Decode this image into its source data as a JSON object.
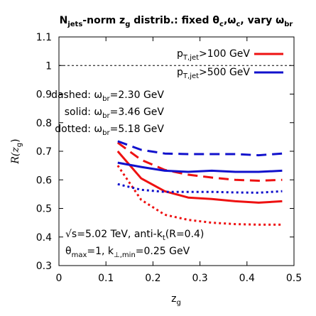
{
  "chart_data": {
    "type": "line",
    "title": {
      "parts": [
        {
          "t": "N",
          "style": "normal"
        },
        {
          "t": "jets",
          "style": "sub"
        },
        {
          "t": "-norm z",
          "style": "normal"
        },
        {
          "t": "g",
          "style": "sub"
        },
        {
          "t": " distrib.: fixed θ",
          "style": "normal"
        },
        {
          "t": "c",
          "style": "sub"
        },
        {
          "t": ",ω",
          "style": "normal"
        },
        {
          "t": "c",
          "style": "sub"
        },
        {
          "t": ", vary ω",
          "style": "normal"
        },
        {
          "t": "br",
          "style": "sub"
        }
      ]
    },
    "xlabel": {
      "main": "z",
      "sub": "g"
    },
    "ylabel": {
      "main": "R(z",
      "sub": "g",
      "end": ")"
    },
    "xlim": [
      0,
      0.5
    ],
    "ylim": [
      0.3,
      1.1
    ],
    "xticks": [
      0,
      0.1,
      0.2,
      0.3,
      0.4,
      0.5
    ],
    "xtick_labels": [
      "0",
      "0.1",
      "0.2",
      "0.3",
      "0.4",
      "0.5"
    ],
    "yticks": [
      0.3,
      0.4,
      0.5,
      0.6,
      0.7,
      0.8,
      0.9,
      1.0,
      1.1
    ],
    "ytick_labels": [
      "0.3",
      "0.4",
      "0.5",
      "0.6",
      "0.7",
      "0.8",
      "0.9",
      "1",
      "1.1"
    ],
    "reference_line": {
      "y": 1.0,
      "color": "#000000",
      "style": "dashed"
    },
    "x": [
      0.125,
      0.175,
      0.225,
      0.275,
      0.325,
      0.375,
      0.425,
      0.475
    ],
    "series": [
      {
        "legend": "pt100",
        "color": "#ee1111",
        "style": "solid",
        "values": [
          0.7,
          0.605,
          0.56,
          0.538,
          0.533,
          0.525,
          0.52,
          0.525
        ]
      },
      {
        "legend": "pt100",
        "color": "#ee1111",
        "style": "dashed",
        "values": [
          0.73,
          0.67,
          0.635,
          0.618,
          0.608,
          0.6,
          0.597,
          0.6
        ]
      },
      {
        "legend": "pt100",
        "color": "#ee1111",
        "style": "dotted",
        "values": [
          0.65,
          0.53,
          0.478,
          0.46,
          0.45,
          0.445,
          0.443,
          0.443
        ]
      },
      {
        "legend": "pt500",
        "color": "#1111cc",
        "style": "solid",
        "values": [
          0.66,
          0.645,
          0.632,
          0.628,
          0.632,
          0.628,
          0.628,
          0.632
        ]
      },
      {
        "legend": "pt500",
        "color": "#1111cc",
        "style": "dashed",
        "values": [
          0.735,
          0.705,
          0.692,
          0.69,
          0.69,
          0.69,
          0.686,
          0.692
        ]
      },
      {
        "legend": "pt500",
        "color": "#1111cc",
        "style": "dotted",
        "values": [
          0.585,
          0.565,
          0.558,
          0.558,
          0.558,
          0.556,
          0.555,
          0.56
        ]
      }
    ],
    "legend": [
      {
        "id": "pt100",
        "color": "#ee1111",
        "label": {
          "pre": "p",
          "sub": "T,jet",
          "post": ">100 GeV"
        }
      },
      {
        "id": "pt500",
        "color": "#1111cc",
        "label": {
          "pre": "p",
          "sub": "T,jet",
          "post": ">500 GeV"
        }
      }
    ],
    "annotations": {
      "dashed": {
        "pre": "dashed: ω",
        "sub": "br",
        "post": "=2.30 GeV"
      },
      "solid": {
        "pre": "solid: ω",
        "sub": "br",
        "post": "=3.46 GeV"
      },
      "dotted": {
        "pre": "dotted: ω",
        "sub": "br",
        "post": "=5.18 GeV"
      },
      "energy": {
        "pre": "√s=5.02 TeV, anti-k",
        "sub": "t",
        "post": "(R=0.4)"
      },
      "theta": {
        "pre": "θ",
        "sub": "max",
        "mid": "=1, k",
        "sub2": "⊥,min",
        "post": "=0.25 GeV"
      }
    }
  }
}
